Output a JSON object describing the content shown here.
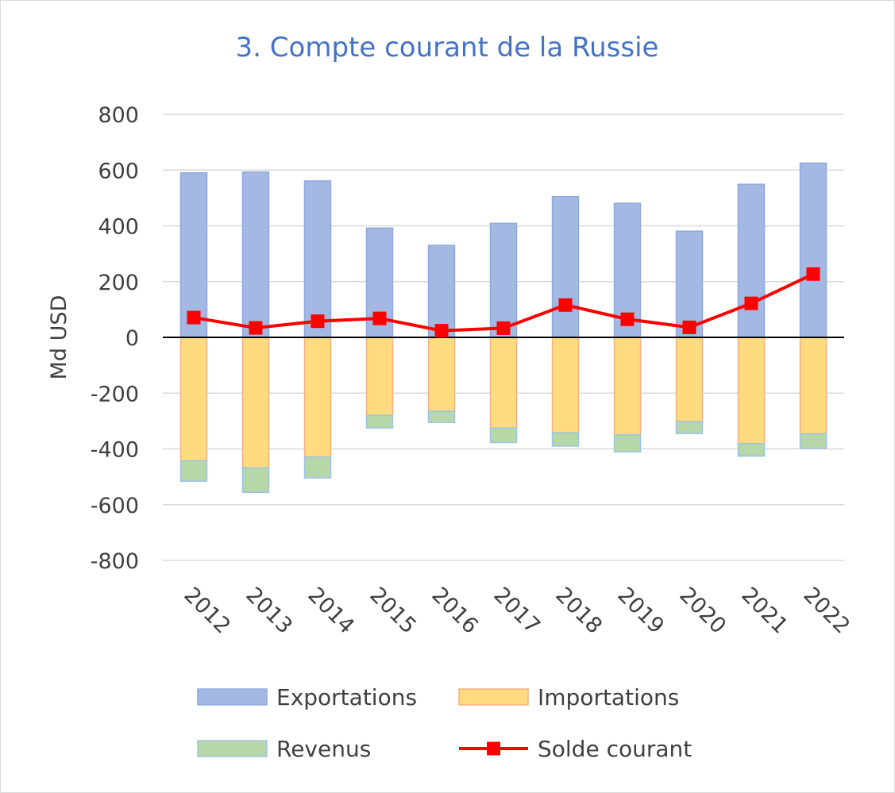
{
  "chart_data": {
    "type": "bar",
    "title": "3. Compte courant de la Russie",
    "ylabel": "Md USD",
    "xlabel": "",
    "ylim": [
      -800,
      800
    ],
    "yticks": [
      800,
      600,
      400,
      200,
      0,
      -200,
      -400,
      -600,
      -800
    ],
    "categories": [
      "2012",
      "2013",
      "2014",
      "2015",
      "2016",
      "2017",
      "2018",
      "2019",
      "2020",
      "2021",
      "2022"
    ],
    "grid": true,
    "legend_position": "bottom",
    "series": [
      {
        "name": "Exportations",
        "kind": "bar",
        "color": "#a3b8e2",
        "edge": "#8faadc",
        "values": [
          590,
          593,
          561,
          392,
          330,
          409,
          505,
          481,
          381,
          549,
          625
        ]
      },
      {
        "name": "Importations",
        "kind": "bar",
        "color": "#ffdb7f",
        "edge": "#f4b183",
        "values": [
          -443,
          -468,
          -429,
          -280,
          -265,
          -325,
          -342,
          -350,
          -302,
          -381,
          -346
        ]
      },
      {
        "name": "Revenus",
        "kind": "bar",
        "color": "#b6d7a8",
        "edge": "#9dc3e6",
        "values": [
          -73,
          -88,
          -75,
          -45,
          -40,
          -52,
          -48,
          -61,
          -43,
          -45,
          -52
        ]
      },
      {
        "name": "Solde courant",
        "kind": "line",
        "color": "#ff0000",
        "values": [
          71,
          34,
          58,
          68,
          24,
          33,
          116,
          65,
          36,
          122,
          227
        ]
      }
    ]
  }
}
